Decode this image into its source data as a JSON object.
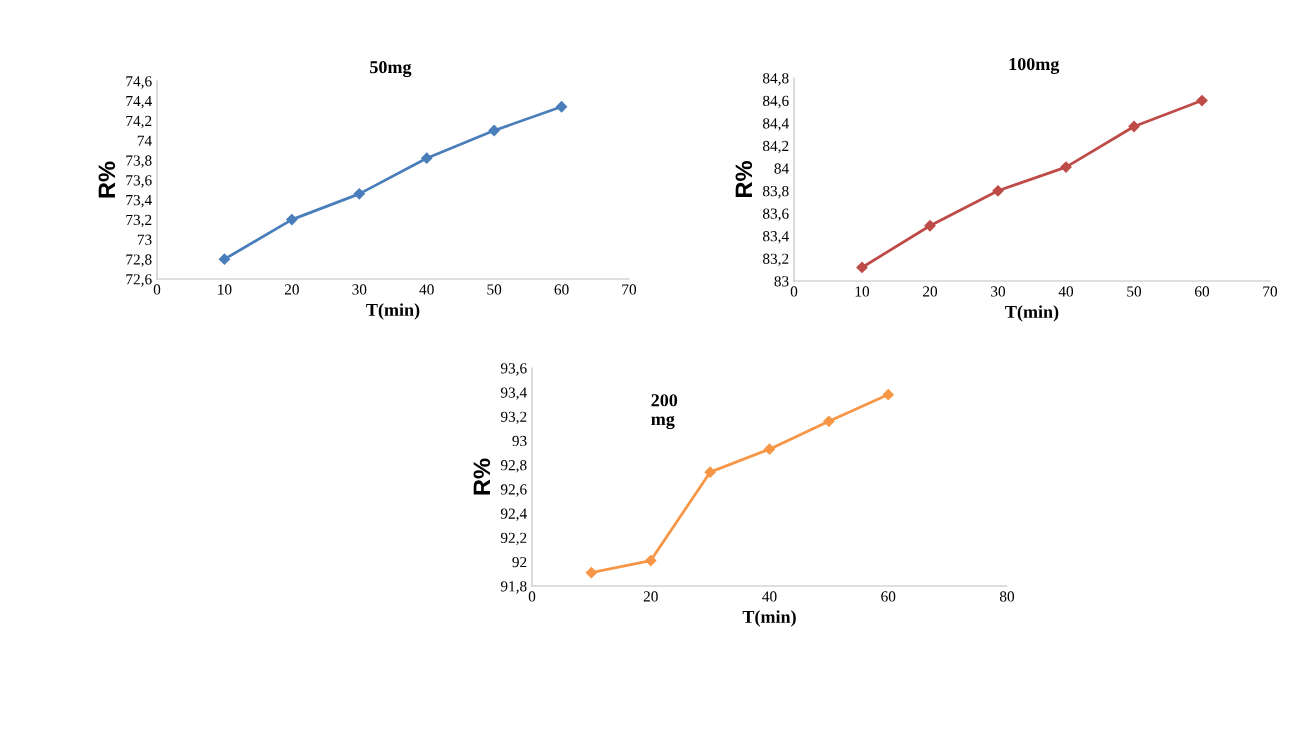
{
  "chart_data": [
    {
      "type": "line",
      "title": "50mg",
      "xlabel": "T(min)",
      "ylabel": "R%",
      "x": [
        10,
        20,
        30,
        40,
        50,
        60
      ],
      "series": [
        {
          "color": "#4a7ebb",
          "values": [
            72.8,
            73.2,
            73.46,
            73.82,
            74.1,
            74.34
          ]
        }
      ],
      "xlim": [
        0,
        70
      ],
      "xticks": [
        0,
        10,
        20,
        30,
        40,
        50,
        60,
        70
      ],
      "ylim": [
        72.6,
        74.6
      ],
      "yticks": [
        {
          "value": 72.6,
          "label": "72,6"
        },
        {
          "value": 72.8,
          "label": "72,8"
        },
        {
          "value": 73,
          "label": "73"
        },
        {
          "value": 73.2,
          "label": "73,2"
        },
        {
          "value": 73.4,
          "label": "73,4"
        },
        {
          "value": 73.6,
          "label": "73,6"
        },
        {
          "value": 73.8,
          "label": "73,8"
        },
        {
          "value": 74,
          "label": "74"
        },
        {
          "value": 74.2,
          "label": "74,2"
        },
        {
          "value": 74.4,
          "label": "74,4"
        },
        {
          "value": 74.6,
          "label": "74,6"
        }
      ],
      "marker": "diamond",
      "grid": false,
      "legend": false
    },
    {
      "type": "line",
      "title": "100mg",
      "xlabel": "T(min)",
      "ylabel": "R%",
      "x": [
        10,
        20,
        30,
        40,
        50,
        60
      ],
      "series": [
        {
          "color": "#be4b48",
          "values": [
            83.12,
            83.49,
            83.8,
            84.01,
            84.37,
            84.6
          ]
        }
      ],
      "xlim": [
        0,
        70
      ],
      "xticks": [
        0,
        10,
        20,
        30,
        40,
        50,
        60,
        70
      ],
      "ylim": [
        83,
        84.8
      ],
      "yticks": [
        {
          "value": 83,
          "label": "83"
        },
        {
          "value": 83.2,
          "label": "83,2"
        },
        {
          "value": 83.4,
          "label": "83,4"
        },
        {
          "value": 83.6,
          "label": "83,6"
        },
        {
          "value": 83.8,
          "label": "83,8"
        },
        {
          "value": 84,
          "label": "84"
        },
        {
          "value": 84.2,
          "label": "84,2"
        },
        {
          "value": 84.4,
          "label": "84,4"
        },
        {
          "value": 84.6,
          "label": "84,6"
        },
        {
          "value": 84.8,
          "label": "84,8"
        }
      ],
      "marker": "diamond",
      "grid": false,
      "legend": false
    },
    {
      "type": "line",
      "title": "200\nmg",
      "xlabel": "T(min)",
      "ylabel": "R%",
      "x": [
        10,
        20,
        30,
        40,
        50,
        60
      ],
      "series": [
        {
          "color": "#f79646",
          "values": [
            91.91,
            92.01,
            92.74,
            92.93,
            93.16,
            93.38
          ]
        }
      ],
      "xlim": [
        0,
        80
      ],
      "xticks": [
        0,
        20,
        40,
        60,
        80
      ],
      "ylim": [
        91.8,
        93.6
      ],
      "yticks": [
        {
          "value": 91.8,
          "label": "91,8"
        },
        {
          "value": 92,
          "label": "92"
        },
        {
          "value": 92.2,
          "label": "92,2"
        },
        {
          "value": 92.4,
          "label": "92,4"
        },
        {
          "value": 92.6,
          "label": "92,6"
        },
        {
          "value": 92.8,
          "label": "92,8"
        },
        {
          "value": 93,
          "label": "93"
        },
        {
          "value": 93.2,
          "label": "93,2"
        },
        {
          "value": 93.4,
          "label": "93,4"
        },
        {
          "value": 93.6,
          "label": "93,6"
        }
      ],
      "marker": "diamond",
      "grid": false,
      "legend": false
    }
  ]
}
